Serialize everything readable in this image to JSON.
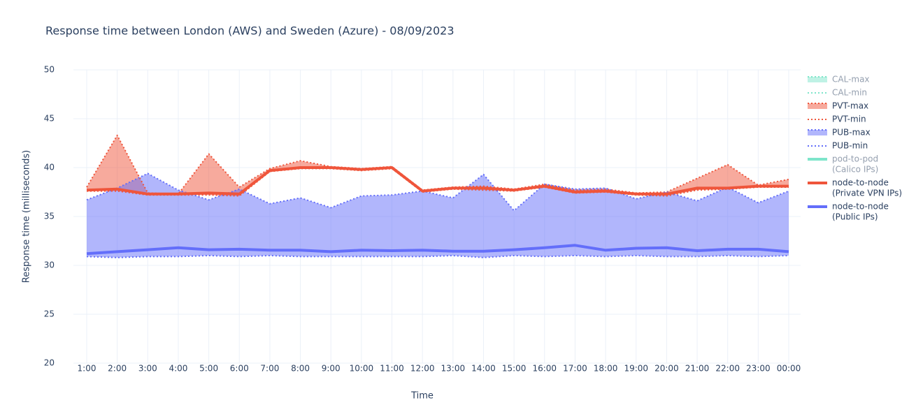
{
  "chart_data": {
    "type": "line",
    "title": "Response time between London (AWS) and Sweden (Azure)   -   08/09/2023",
    "x_label": "Time",
    "y_label": "Response time (milliseconds)",
    "categories": [
      "1:00",
      "2:00",
      "3:00",
      "4:00",
      "5:00",
      "6:00",
      "7:00",
      "8:00",
      "9:00",
      "10:00",
      "11:00",
      "12:00",
      "13:00",
      "14:00",
      "15:00",
      "16:00",
      "17:00",
      "18:00",
      "19:00",
      "20:00",
      "21:00",
      "22:00",
      "23:00",
      "00:00"
    ],
    "ylim": [
      20,
      50
    ],
    "yticks": [
      20,
      25,
      30,
      35,
      40,
      45,
      50
    ],
    "grid": true,
    "legend": "right",
    "series": [
      {
        "name": [
          "CAL-max"
        ],
        "color": "#00cc96",
        "style": "dot",
        "fill_between": "CAL-min",
        "visible": "legendonly"
      },
      {
        "name": [
          "CAL-min"
        ],
        "color": "#00cc96",
        "style": "dot",
        "visible": "legendonly"
      },
      {
        "name": [
          "PVT-max"
        ],
        "color": "#ef553b",
        "style": "dot",
        "fill_between": "PVT-min",
        "values": [
          38.0,
          43.3,
          37.4,
          37.3,
          41.4,
          38.0,
          39.9,
          40.7,
          40.1,
          39.9,
          40.1,
          37.7,
          38.0,
          38.1,
          37.8,
          38.3,
          37.7,
          37.8,
          37.4,
          37.5,
          38.9,
          40.3,
          38.2,
          38.8
        ]
      },
      {
        "name": [
          "PVT-min"
        ],
        "color": "#ef553b",
        "style": "dot",
        "values": [
          37.6,
          37.6,
          37.2,
          37.2,
          37.2,
          37.1,
          39.6,
          39.9,
          39.9,
          39.7,
          39.9,
          37.5,
          37.8,
          37.7,
          37.6,
          38.0,
          37.4,
          37.5,
          37.2,
          37.1,
          37.7,
          37.8,
          38.0,
          38.0
        ]
      },
      {
        "name": [
          "PUB-max"
        ],
        "color": "#636efa",
        "style": "dot",
        "fill_between": "PUB-min",
        "values": [
          36.7,
          37.9,
          39.4,
          37.7,
          36.7,
          37.8,
          36.3,
          36.9,
          35.9,
          37.1,
          37.2,
          37.6,
          36.9,
          39.3,
          35.6,
          38.3,
          37.8,
          37.9,
          36.8,
          37.5,
          36.6,
          38.0,
          36.4,
          37.6
        ]
      },
      {
        "name": [
          "PUB-min"
        ],
        "color": "#636efa",
        "style": "dot",
        "values": [
          30.9,
          30.8,
          30.9,
          30.9,
          31.0,
          30.9,
          31.0,
          30.9,
          30.9,
          30.9,
          30.9,
          30.9,
          31.0,
          30.8,
          31.0,
          30.9,
          31.0,
          30.9,
          31.0,
          30.9,
          30.9,
          31.0,
          30.9,
          31.0
        ]
      },
      {
        "name": [
          "pod-to-pod",
          "(Calico IPs)"
        ],
        "color": "#00cc96",
        "style": "solid",
        "visible": "legendonly"
      },
      {
        "name": [
          "node-to-node",
          "(Private VPN IPs)"
        ],
        "color": "#ef553b",
        "style": "solid",
        "values": [
          37.7,
          37.8,
          37.3,
          37.3,
          37.4,
          37.3,
          39.7,
          40.0,
          40.0,
          39.8,
          40.0,
          37.6,
          37.9,
          37.9,
          37.7,
          38.1,
          37.5,
          37.6,
          37.3,
          37.3,
          37.9,
          37.9,
          38.1,
          38.1
        ]
      },
      {
        "name": [
          "node-to-node",
          "(Public IPs)"
        ],
        "color": "#636efa",
        "style": "solid",
        "values": [
          31.2,
          31.4,
          31.6,
          31.8,
          31.6,
          31.65,
          31.55,
          31.55,
          31.4,
          31.55,
          31.5,
          31.55,
          31.45,
          31.45,
          31.6,
          31.8,
          32.05,
          31.55,
          31.75,
          31.8,
          31.5,
          31.65,
          31.65,
          31.4
        ]
      }
    ]
  }
}
